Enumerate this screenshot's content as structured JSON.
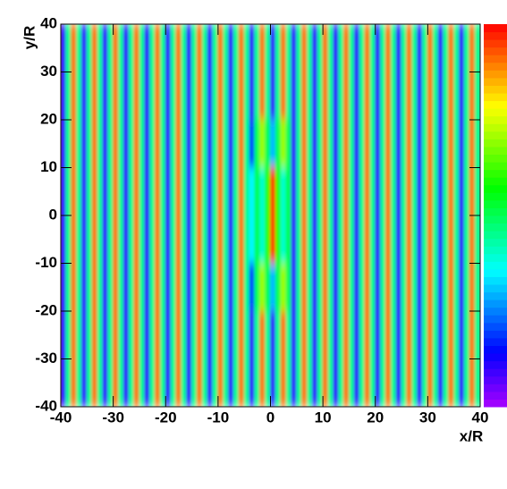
{
  "chart_data": {
    "type": "heatmap",
    "xlabel": "x/R",
    "ylabel": "y/R",
    "xlim": [
      -40,
      40
    ],
    "ylim": [
      -40,
      40
    ],
    "xticks": [
      -40,
      -30,
      -20,
      -10,
      0,
      10,
      20,
      30,
      40
    ],
    "yticks": [
      -40,
      -30,
      -20,
      -10,
      0,
      10,
      20,
      30,
      40
    ],
    "zlim": [
      0,
      1
    ],
    "colormap": "rainbow",
    "values": [
      [
        0.1,
        0.45,
        0.9,
        0.45,
        0.1,
        0.45,
        0.9,
        0.45,
        0.1,
        0.45,
        0.9,
        0.45,
        0.1,
        0.45,
        0.9,
        0.45,
        0.1,
        0.45,
        0.9,
        0.45,
        0.1,
        0.45,
        0.9,
        0.45,
        0.1,
        0.45,
        0.9,
        0.45,
        0.1,
        0.45,
        0.9,
        0.45,
        0.1,
        0.45,
        0.9,
        0.45,
        0.1,
        0.45,
        0.9,
        0.45,
        0.1,
        0.45,
        0.9,
        0.45,
        0.1,
        0.45,
        0.9,
        0.45,
        0.1,
        0.45,
        0.9,
        0.45,
        0.1,
        0.45,
        0.9,
        0.45,
        0.1,
        0.45,
        0.9,
        0.45,
        0.1,
        0.45,
        0.9,
        0.45,
        0.1,
        0.45,
        0.9,
        0.45,
        0.1,
        0.45,
        0.9,
        0.45,
        0.1,
        0.45,
        0.9,
        0.45,
        0.1,
        0.45,
        0.9,
        0.45
      ],
      [
        0.1,
        0.45,
        0.9,
        0.45,
        0.1,
        0.45,
        0.9,
        0.45,
        0.1,
        0.45,
        0.9,
        0.45,
        0.1,
        0.45,
        0.9,
        0.45,
        0.1,
        0.45,
        0.9,
        0.45,
        0.1,
        0.45,
        0.9,
        0.45,
        0.1,
        0.45,
        0.9,
        0.45,
        0.1,
        0.45,
        0.9,
        0.45,
        0.1,
        0.45,
        0.9,
        0.45,
        0.1,
        0.45,
        0.9,
        0.45,
        0.1,
        0.45,
        0.9,
        0.45,
        0.1,
        0.45,
        0.9,
        0.45,
        0.1,
        0.45,
        0.9,
        0.45,
        0.1,
        0.45,
        0.9,
        0.45,
        0.1,
        0.45,
        0.9,
        0.45,
        0.1,
        0.45,
        0.9,
        0.45,
        0.1,
        0.45,
        0.9,
        0.45,
        0.1,
        0.45,
        0.9,
        0.45,
        0.1,
        0.45,
        0.9,
        0.45,
        0.1,
        0.45,
        0.9,
        0.45
      ],
      [
        0.1,
        0.45,
        0.9,
        0.45,
        0.1,
        0.45,
        0.9,
        0.45,
        0.1,
        0.45,
        0.9,
        0.45,
        0.1,
        0.45,
        0.9,
        0.45,
        0.1,
        0.45,
        0.9,
        0.45,
        0.1,
        0.45,
        0.9,
        0.45,
        0.1,
        0.45,
        0.9,
        0.45,
        0.1,
        0.45,
        0.9,
        0.45,
        0.1,
        0.45,
        0.9,
        0.45,
        0.2,
        0.5,
        0.7,
        0.5,
        0.3,
        0.5,
        0.7,
        0.5,
        0.1,
        0.45,
        0.9,
        0.45,
        0.1,
        0.45,
        0.9,
        0.45,
        0.1,
        0.45,
        0.9,
        0.45,
        0.1,
        0.45,
        0.9,
        0.45,
        0.1,
        0.45,
        0.9,
        0.45,
        0.1,
        0.45,
        0.9,
        0.45,
        0.1,
        0.45,
        0.9,
        0.45,
        0.1,
        0.45,
        0.9,
        0.45,
        0.1,
        0.45,
        0.9,
        0.45
      ],
      [
        0.1,
        0.45,
        0.9,
        0.45,
        0.1,
        0.45,
        0.9,
        0.45,
        0.1,
        0.45,
        0.9,
        0.45,
        0.1,
        0.45,
        0.9,
        0.45,
        0.1,
        0.45,
        0.9,
        0.45,
        0.1,
        0.45,
        0.9,
        0.45,
        0.1,
        0.45,
        0.9,
        0.45,
        0.1,
        0.45,
        0.9,
        0.45,
        0.1,
        0.45,
        0.9,
        0.45,
        0.35,
        0.5,
        0.4,
        0.6,
        0.95,
        0.6,
        0.4,
        0.5,
        0.1,
        0.45,
        0.9,
        0.45,
        0.1,
        0.45,
        0.9,
        0.45,
        0.1,
        0.45,
        0.9,
        0.45,
        0.1,
        0.45,
        0.9,
        0.45,
        0.1,
        0.45,
        0.9,
        0.45,
        0.1,
        0.45,
        0.9,
        0.45,
        0.1,
        0.45,
        0.9,
        0.45,
        0.1,
        0.45,
        0.9,
        0.45,
        0.1,
        0.45,
        0.9,
        0.45
      ],
      [
        0.1,
        0.45,
        0.9,
        0.45,
        0.1,
        0.45,
        0.9,
        0.45,
        0.1,
        0.45,
        0.9,
        0.45,
        0.1,
        0.45,
        0.9,
        0.45,
        0.1,
        0.45,
        0.9,
        0.45,
        0.1,
        0.45,
        0.9,
        0.45,
        0.1,
        0.45,
        0.9,
        0.45,
        0.1,
        0.45,
        0.9,
        0.45,
        0.1,
        0.45,
        0.9,
        0.45,
        0.35,
        0.5,
        0.4,
        0.6,
        0.95,
        0.6,
        0.4,
        0.5,
        0.1,
        0.45,
        0.9,
        0.45,
        0.1,
        0.45,
        0.9,
        0.45,
        0.1,
        0.45,
        0.9,
        0.45,
        0.1,
        0.45,
        0.9,
        0.45,
        0.1,
        0.45,
        0.9,
        0.45,
        0.1,
        0.45,
        0.9,
        0.45,
        0.1,
        0.45,
        0.9,
        0.45,
        0.1,
        0.45,
        0.9,
        0.45,
        0.1,
        0.45,
        0.9,
        0.45
      ],
      [
        0.1,
        0.45,
        0.9,
        0.45,
        0.1,
        0.45,
        0.9,
        0.45,
        0.1,
        0.45,
        0.9,
        0.45,
        0.1,
        0.45,
        0.9,
        0.45,
        0.1,
        0.45,
        0.9,
        0.45,
        0.1,
        0.45,
        0.9,
        0.45,
        0.1,
        0.45,
        0.9,
        0.45,
        0.1,
        0.45,
        0.9,
        0.45,
        0.1,
        0.45,
        0.9,
        0.45,
        0.2,
        0.5,
        0.7,
        0.5,
        0.3,
        0.5,
        0.7,
        0.5,
        0.1,
        0.45,
        0.9,
        0.45,
        0.1,
        0.45,
        0.9,
        0.45,
        0.1,
        0.45,
        0.9,
        0.45,
        0.1,
        0.45,
        0.9,
        0.45,
        0.1,
        0.45,
        0.9,
        0.45,
        0.1,
        0.45,
        0.9,
        0.45,
        0.1,
        0.45,
        0.9,
        0.45,
        0.1,
        0.45,
        0.9,
        0.45,
        0.1,
        0.45,
        0.9,
        0.45
      ],
      [
        0.1,
        0.45,
        0.9,
        0.45,
        0.1,
        0.45,
        0.9,
        0.45,
        0.1,
        0.45,
        0.9,
        0.45,
        0.1,
        0.45,
        0.9,
        0.45,
        0.1,
        0.45,
        0.9,
        0.45,
        0.1,
        0.45,
        0.9,
        0.45,
        0.1,
        0.45,
        0.9,
        0.45,
        0.1,
        0.45,
        0.9,
        0.45,
        0.1,
        0.45,
        0.9,
        0.45,
        0.1,
        0.45,
        0.9,
        0.45,
        0.1,
        0.45,
        0.9,
        0.45,
        0.1,
        0.45,
        0.9,
        0.45,
        0.1,
        0.45,
        0.9,
        0.45,
        0.1,
        0.45,
        0.9,
        0.45,
        0.1,
        0.45,
        0.9,
        0.45,
        0.1,
        0.45,
        0.9,
        0.45,
        0.1,
        0.45,
        0.9,
        0.45,
        0.1,
        0.45,
        0.9,
        0.45,
        0.1,
        0.45,
        0.9,
        0.45,
        0.1,
        0.45,
        0.9,
        0.45
      ],
      [
        0.1,
        0.45,
        0.9,
        0.45,
        0.1,
        0.45,
        0.9,
        0.45,
        0.1,
        0.45,
        0.9,
        0.45,
        0.1,
        0.45,
        0.9,
        0.45,
        0.1,
        0.45,
        0.9,
        0.45,
        0.1,
        0.45,
        0.9,
        0.45,
        0.1,
        0.45,
        0.9,
        0.45,
        0.1,
        0.45,
        0.9,
        0.45,
        0.1,
        0.45,
        0.9,
        0.45,
        0.1,
        0.45,
        0.9,
        0.45,
        0.1,
        0.45,
        0.9,
        0.45,
        0.1,
        0.45,
        0.9,
        0.45,
        0.1,
        0.45,
        0.9,
        0.45,
        0.1,
        0.45,
        0.9,
        0.45,
        0.1,
        0.45,
        0.9,
        0.45,
        0.1,
        0.45,
        0.9,
        0.45,
        0.1,
        0.45,
        0.9,
        0.45,
        0.1,
        0.45,
        0.9,
        0.45,
        0.1,
        0.45,
        0.9,
        0.45,
        0.1,
        0.45,
        0.9,
        0.45
      ]
    ]
  }
}
